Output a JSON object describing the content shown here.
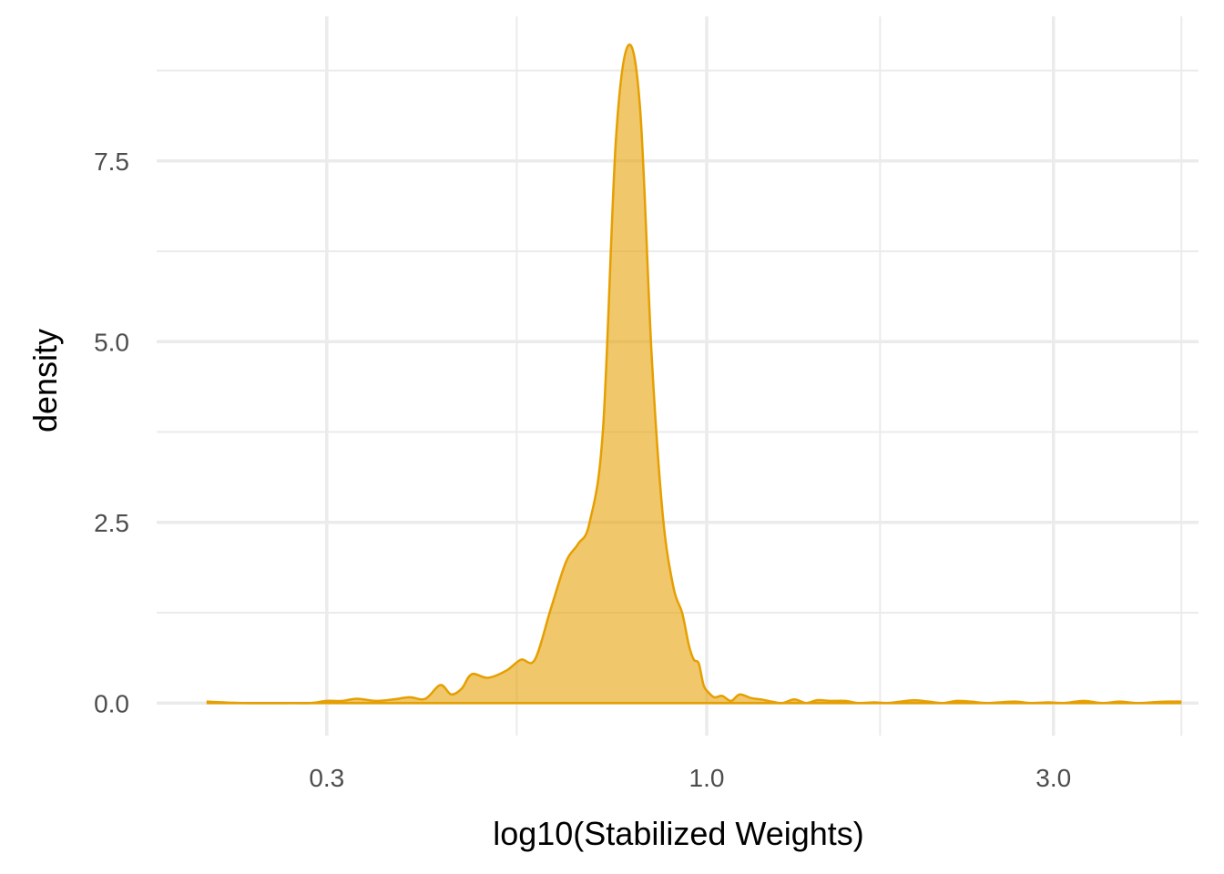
{
  "chart_data": {
    "type": "area",
    "subtype": "density",
    "title": "",
    "xlabel": "log10(Stabilized Weights)",
    "ylabel": "density",
    "x_scale": "log10",
    "xlim": [
      0.175,
      4.75
    ],
    "ylim": [
      -0.45,
      9.5
    ],
    "x_ticks": [
      0.3,
      1.0,
      3.0
    ],
    "x_tick_labels": [
      "0.3",
      "1.0",
      "3.0"
    ],
    "x_minor_ticks": [
      0.5477,
      1.732,
      4.5
    ],
    "y_ticks": [
      0.0,
      2.5,
      5.0,
      7.5
    ],
    "y_tick_labels": [
      "0.0",
      "2.5",
      "5.0",
      "7.5"
    ],
    "y_minor_ticks": [
      1.25,
      3.75,
      6.25,
      8.75
    ],
    "grid": true,
    "legend": "none",
    "fill_color": "#E69F00",
    "fill_opacity": 0.58,
    "line_color": "#E69F00",
    "grid_color": "#EBEBEB",
    "x": [
      0.205,
      0.23,
      0.27,
      0.285,
      0.3,
      0.315,
      0.33,
      0.35,
      0.37,
      0.39,
      0.41,
      0.43,
      0.445,
      0.46,
      0.475,
      0.5,
      0.53,
      0.555,
      0.58,
      0.61,
      0.64,
      0.665,
      0.69,
      0.72,
      0.75,
      0.78,
      0.81,
      0.84,
      0.87,
      0.9,
      0.925,
      0.945,
      0.96,
      0.975,
      0.99,
      1.005,
      1.025,
      1.05,
      1.08,
      1.11,
      1.15,
      1.19,
      1.23,
      1.27,
      1.32,
      1.37,
      1.42,
      1.48,
      1.55,
      1.62,
      1.7,
      1.77,
      1.85,
      1.93,
      2.02,
      2.11,
      2.21,
      2.31,
      2.42,
      2.53,
      2.66,
      2.8,
      2.95,
      3.1,
      3.3,
      3.5,
      3.7,
      3.9,
      4.1,
      4.3,
      4.5
    ],
    "y": [
      0.02,
      0.0,
      0.0,
      0.0,
      0.03,
      0.03,
      0.06,
      0.03,
      0.05,
      0.08,
      0.06,
      0.25,
      0.12,
      0.2,
      0.4,
      0.35,
      0.45,
      0.6,
      0.6,
      1.3,
      1.95,
      2.2,
      2.5,
      3.8,
      7.8,
      9.1,
      8.2,
      4.8,
      2.6,
      1.6,
      1.25,
      0.8,
      0.6,
      0.55,
      0.25,
      0.15,
      0.08,
      0.1,
      0.03,
      0.12,
      0.07,
      0.05,
      0.02,
      0.0,
      0.05,
      0.0,
      0.04,
      0.03,
      0.03,
      0.0,
      0.01,
      0.0,
      0.02,
      0.04,
      0.02,
      0.0,
      0.03,
      0.02,
      0.0,
      0.01,
      0.02,
      0.0,
      0.01,
      0.0,
      0.03,
      0.0,
      0.02,
      0.0,
      0.01,
      0.02,
      0.02
    ]
  }
}
